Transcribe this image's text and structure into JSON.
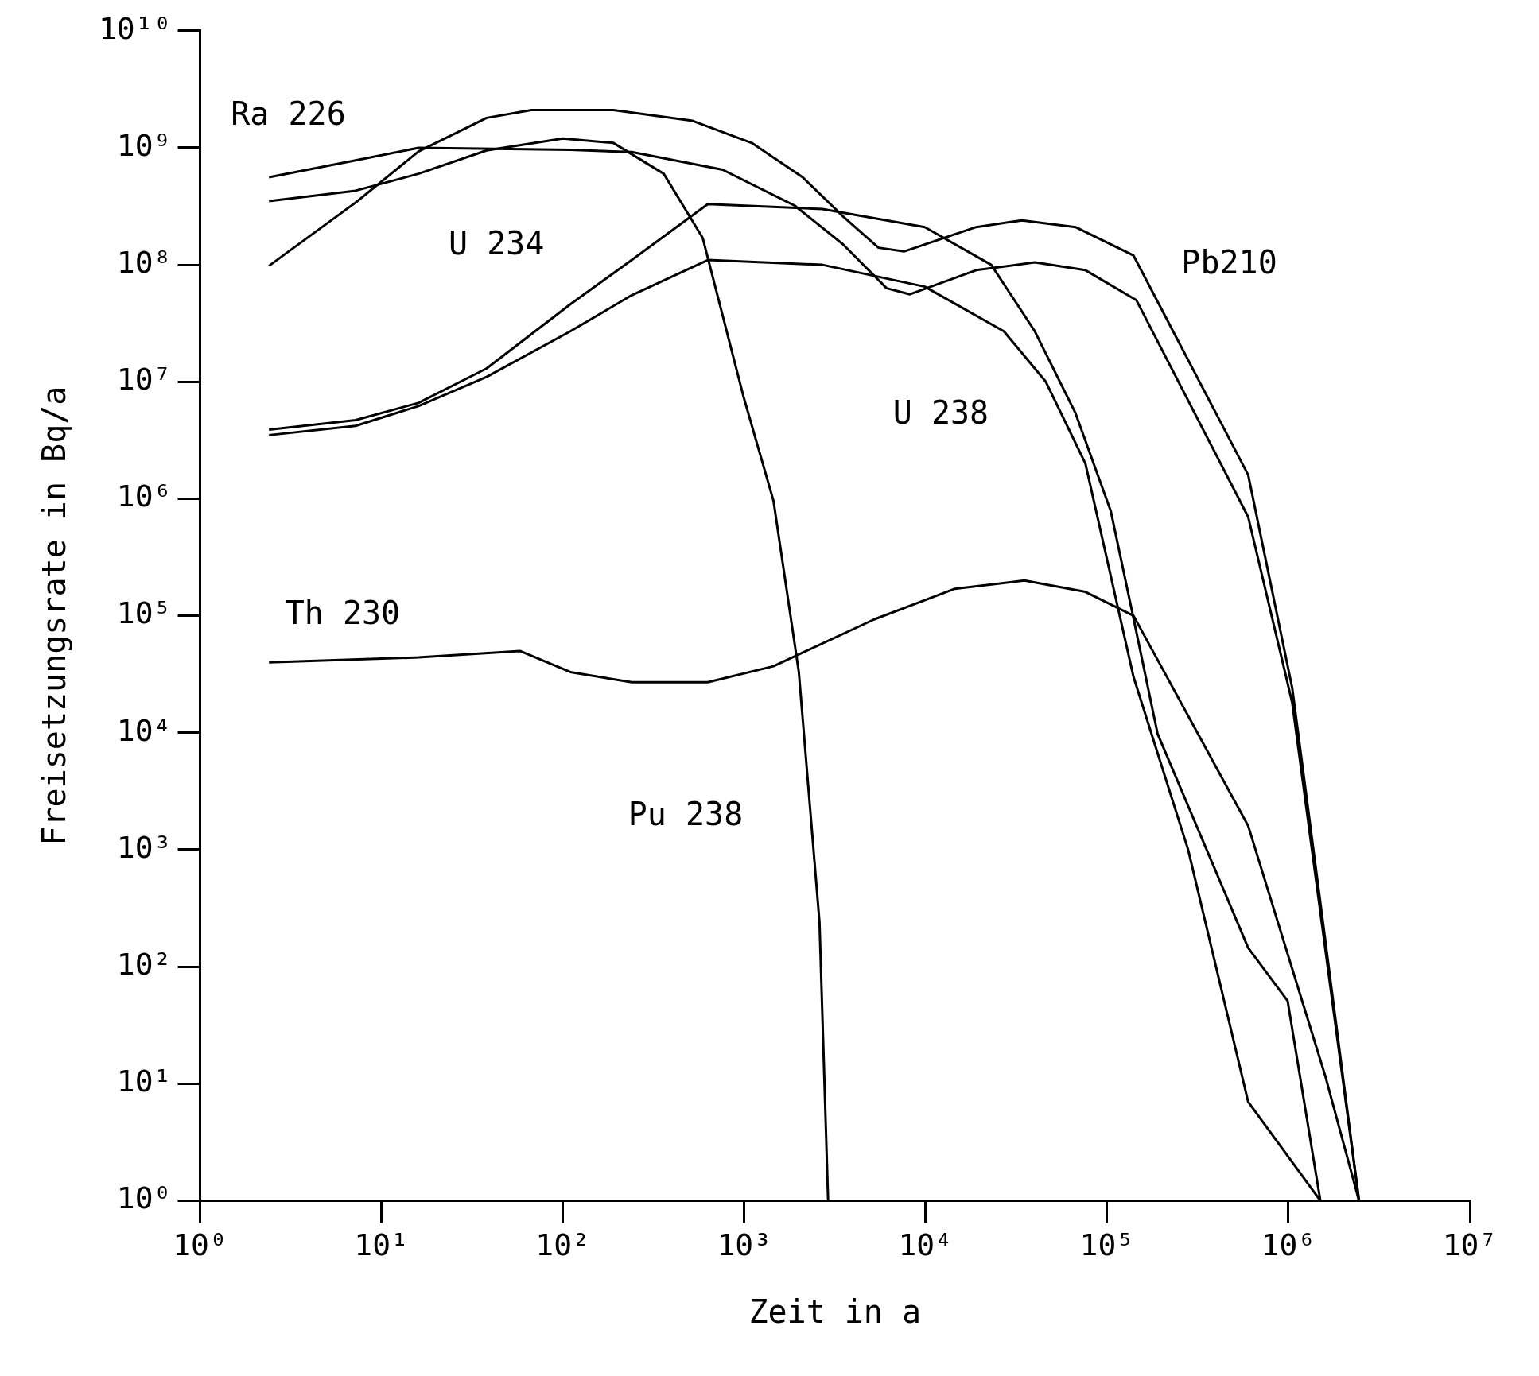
{
  "chart_data": {
    "type": "line",
    "xlabel": "Zeit in a",
    "ylabel": "Freisetzungsrate in Bq/a",
    "log": "xy",
    "grid": false,
    "legend": false,
    "marker": "none",
    "line_style": "solid",
    "xlim": [
      1,
      10000000
    ],
    "ylim": [
      1,
      10000000000
    ],
    "xticks": [
      {
        "value": 1,
        "label": "10⁰"
      },
      {
        "value": 10,
        "label": "10¹"
      },
      {
        "value": 100,
        "label": "10²"
      },
      {
        "value": 1000,
        "label": "10³"
      },
      {
        "value": 10000,
        "label": "10⁴"
      },
      {
        "value": 100000,
        "label": "10⁵"
      },
      {
        "value": 1000000,
        "label": "10⁶"
      },
      {
        "value": 10000000,
        "label": "10⁷"
      }
    ],
    "yticks": [
      {
        "value": 1,
        "label": "10⁰"
      },
      {
        "value": 10,
        "label": "10¹"
      },
      {
        "value": 100,
        "label": "10²"
      },
      {
        "value": 1000,
        "label": "10³"
      },
      {
        "value": 10000,
        "label": "10⁴"
      },
      {
        "value": 100000,
        "label": "10⁵"
      },
      {
        "value": 1000000,
        "label": "10⁶"
      },
      {
        "value": 10000000,
        "label": "10⁷"
      },
      {
        "value": 100000000,
        "label": "10⁸"
      },
      {
        "value": 1000000000,
        "label": "10⁹"
      },
      {
        "value": 10000000000,
        "label": "10¹⁰"
      }
    ],
    "series": [
      {
        "name": "Ra 226",
        "color": "#000000",
        "x": [
          2.4,
          7.2,
          16,
          110,
          240,
          760,
          1900,
          3500,
          6100,
          8200,
          19000,
          40000,
          76000,
          145000,
          600000,
          1050000,
          1550000,
          2450000
        ],
        "values": [
          560000000,
          780000000,
          1000000000,
          960000000,
          920000000,
          650000000,
          320000000,
          150000000,
          63000000,
          56000000,
          90000000,
          105000000,
          90000000,
          50000000,
          700000,
          18000,
          200,
          1
        ]
      },
      {
        "name": "U 234",
        "color": "#000000",
        "x": [
          2.4,
          7.2,
          16,
          38,
          110,
          240,
          630,
          2700,
          9900,
          23000,
          40000,
          67000,
          105000,
          140000,
          190000,
          600000,
          990000,
          1500000
        ],
        "values": [
          3900000,
          4700000,
          6600000,
          13000000,
          46000000,
          110000000,
          330000000,
          300000000,
          210000000,
          100000000,
          27000000,
          5400000,
          780000,
          95000,
          9800,
          145,
          51,
          1
        ]
      },
      {
        "name": "Pb210",
        "color": "#000000",
        "x": [
          2.4,
          7.2,
          16,
          38,
          67,
          190,
          520,
          1100,
          2100,
          3500,
          5500,
          7600,
          19000,
          34000,
          67000,
          140000,
          600000,
          1050000,
          1550000,
          2450000
        ],
        "values": [
          98000000,
          340000000,
          930000000,
          1800000000,
          2100000000,
          2100000000,
          1700000000,
          1100000000,
          560000000,
          260000000,
          140000000,
          130000000,
          210000000,
          240000000,
          210000000,
          120000000,
          1600000,
          24000,
          240,
          1
        ]
      },
      {
        "name": "U 238",
        "color": "#000000",
        "x": [
          2.4,
          7.2,
          16,
          38,
          110,
          240,
          630,
          2700,
          9900,
          27000,
          46000,
          76000,
          140000,
          280000,
          600000,
          1500000
        ],
        "values": [
          3500000,
          4200000,
          6200000,
          11000000,
          27000000,
          55000000,
          110000000,
          100000000,
          65000000,
          27000000,
          10000000,
          2000000,
          30000,
          1000,
          7,
          1
        ]
      },
      {
        "name": "Th 230",
        "color": "#000000",
        "x": [
          2.4,
          16,
          58,
          110,
          240,
          630,
          1450,
          5200,
          14500,
          35000,
          76000,
          140000,
          600000,
          1600000,
          2450000
        ],
        "values": [
          40000,
          44000,
          50000,
          33000,
          27000,
          27000,
          37000,
          93000,
          170000,
          200000,
          160000,
          100000,
          1600,
          11.5,
          1
        ]
      },
      {
        "name": "Pu 238",
        "color": "#000000",
        "x": [
          2.4,
          7.2,
          16,
          38,
          100,
          190,
          360,
          590,
          990,
          1450,
          2000,
          2600,
          2900
        ],
        "values": [
          350000000,
          430000000,
          600000000,
          950000000,
          1200000000,
          1100000000,
          600000000,
          170000000,
          7500000,
          960000,
          33000,
          240,
          1
        ]
      }
    ]
  }
}
